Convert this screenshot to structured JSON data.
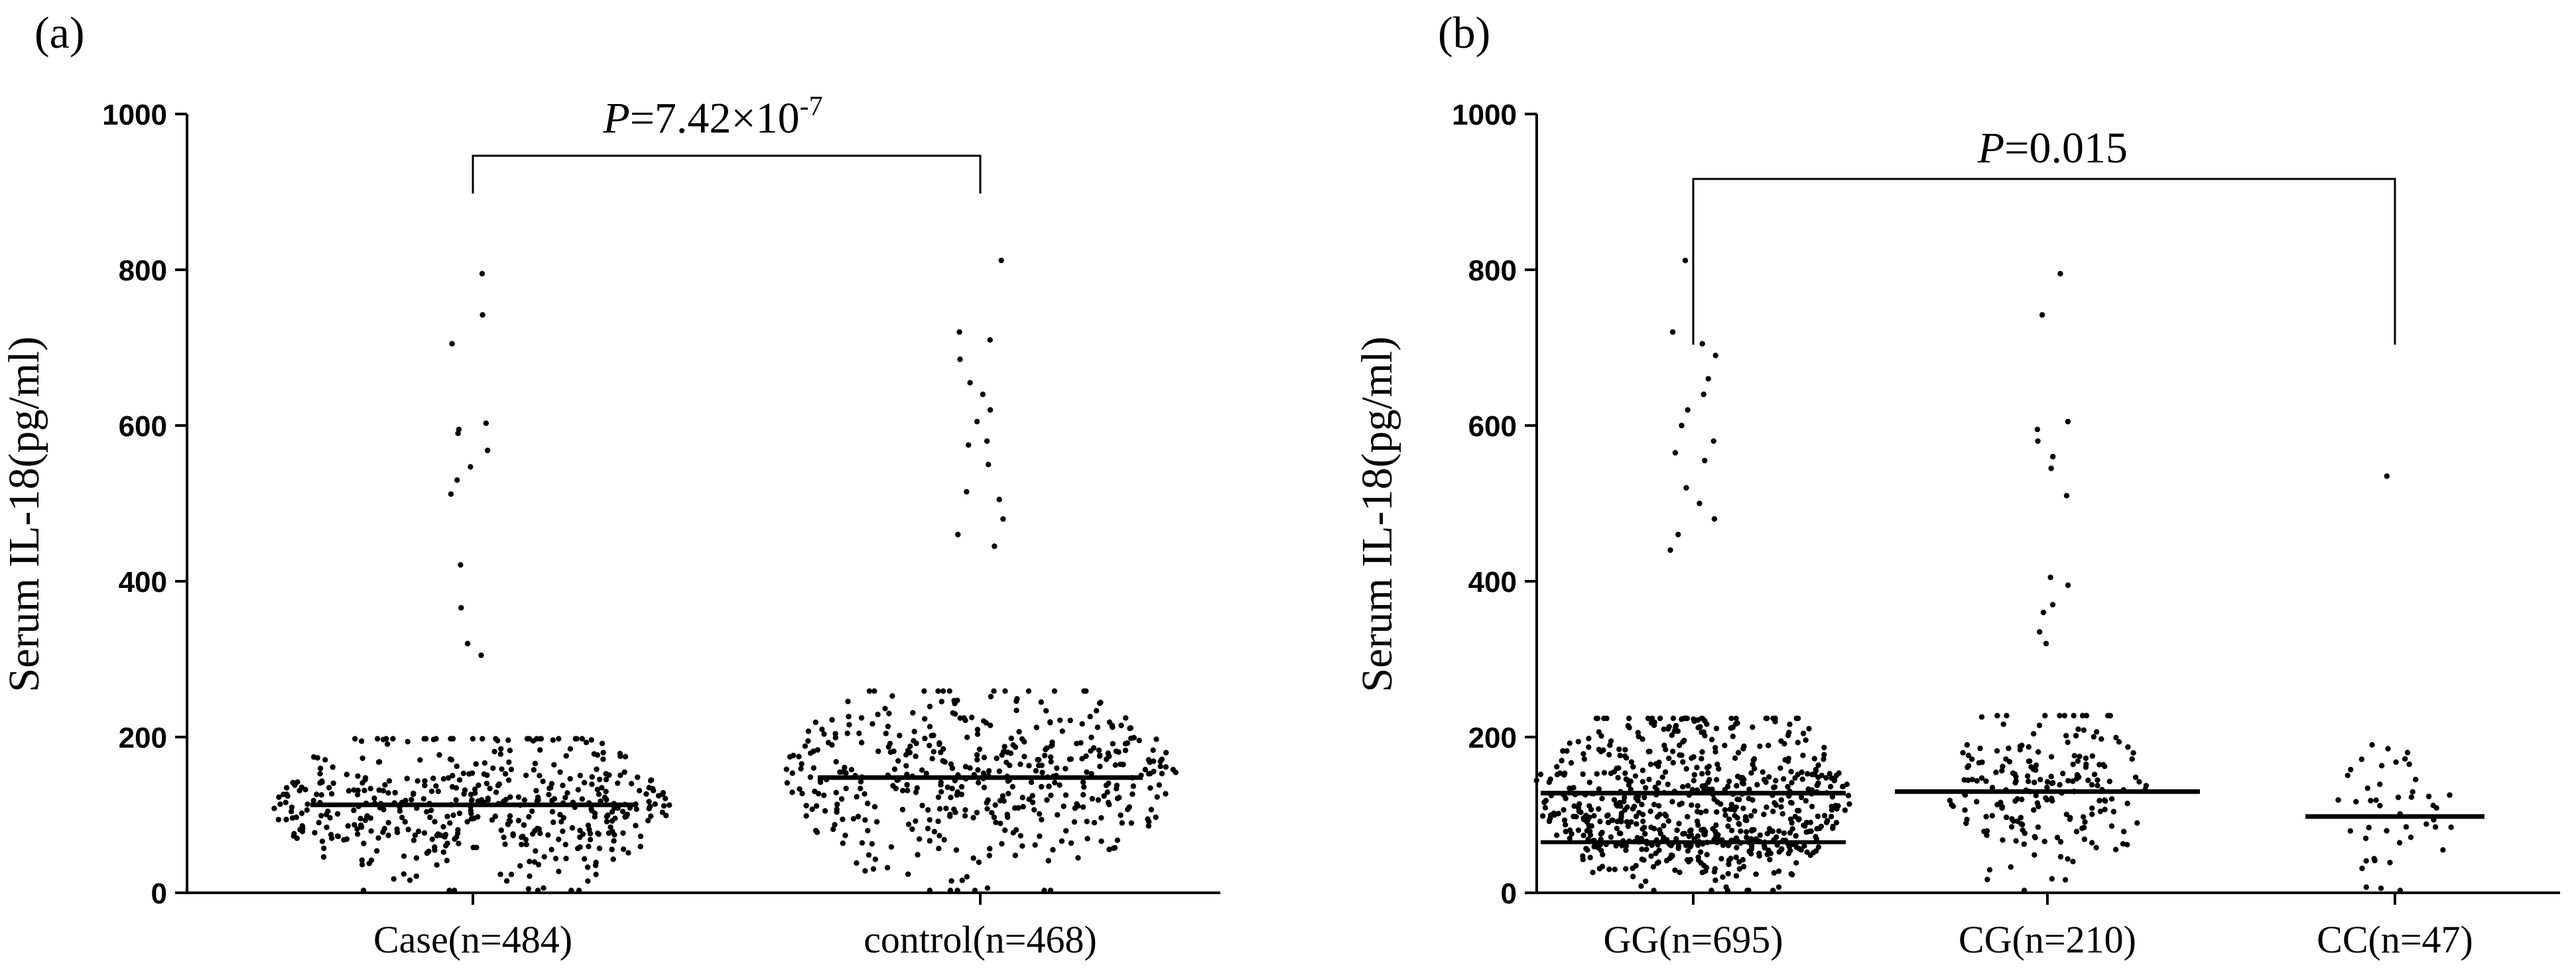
{
  "chart_data": [
    {
      "panel_label": "(a)",
      "type": "scatter",
      "subtype": "dot-plot with median line",
      "ylabel": "Serum IL-18(pg/ml)",
      "ylim": [
        0,
        1000
      ],
      "yticks": [
        0,
        200,
        400,
        600,
        800,
        1000
      ],
      "ytick_labels": [
        "0",
        "200",
        "400",
        "600",
        "800",
        "1000"
      ],
      "categories": [
        "Case(n=484)",
        "control(n=468)"
      ],
      "groups": [
        {
          "name": "Case(n=484)",
          "n": 484,
          "median": 113,
          "max": 795,
          "outliers": [
            795,
            742,
            705,
            603,
            595,
            590,
            568,
            547,
            530,
            512,
            421,
            366,
            320,
            305
          ]
        },
        {
          "name": "control(n=468)",
          "n": 468,
          "median": 148,
          "max": 812,
          "outliers": [
            812,
            720,
            710,
            685,
            655,
            640,
            620,
            605,
            580,
            575,
            550,
            515,
            505,
            480,
            460,
            445
          ]
        }
      ],
      "comparison": {
        "between": [
          "Case(n=484)",
          "control(n=468)"
        ],
        "p_label": "P",
        "p_text": "=7.42×10",
        "p_exp": "-7"
      }
    },
    {
      "panel_label": "(b)",
      "type": "scatter",
      "subtype": "dot-plot with median line",
      "ylabel": "Serum IL-18(pg/ml)",
      "ylim": [
        0,
        1000
      ],
      "yticks": [
        0,
        200,
        400,
        600,
        800,
        1000
      ],
      "ytick_labels": [
        "0",
        "200",
        "400",
        "600",
        "800",
        "1000"
      ],
      "categories": [
        "GG(n=695)",
        "CG(n=210)",
        "CC(n=47)"
      ],
      "groups": [
        {
          "name": "GG(n=695)",
          "n": 695,
          "median": 128,
          "secondary_line": 65,
          "max": 812,
          "outliers": [
            812,
            720,
            705,
            690,
            660,
            640,
            620,
            600,
            580,
            565,
            555,
            520,
            500,
            480,
            460,
            440
          ]
        },
        {
          "name": "CG(n=210)",
          "n": 210,
          "median": 130,
          "max": 795,
          "outliers": [
            795,
            742,
            605,
            595,
            580,
            560,
            545,
            510,
            405,
            395,
            370,
            360,
            335,
            320
          ]
        },
        {
          "name": "CC(n=47)",
          "n": 47,
          "median": 98,
          "max": 535,
          "outliers": [
            535,
            190,
            185,
            180,
            172,
            165
          ]
        }
      ],
      "comparison": {
        "between": [
          "GG(n=695)",
          "CC(n=47)"
        ],
        "p_label": "P",
        "p_text": "=0.015",
        "p_exp": ""
      }
    }
  ]
}
